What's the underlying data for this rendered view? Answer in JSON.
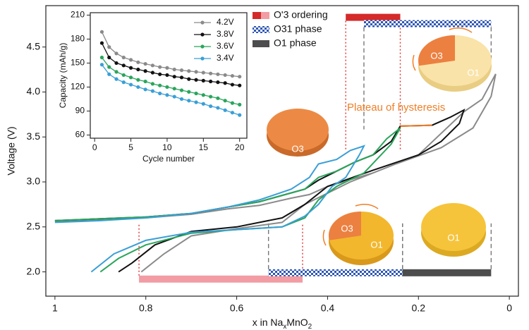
{
  "chart_data": [
    {
      "type": "line",
      "xlabel_parts": [
        "x in Na",
        "x",
        "MnO",
        "2"
      ],
      "ylabel": "Voltage (V)",
      "xlim": [
        1.02,
        -0.02
      ],
      "ylim": [
        1.73,
        4.96
      ],
      "xticks": [
        1,
        0.8,
        0.6,
        0.4,
        0.2,
        0
      ],
      "yticks": [
        {
          "value": 2,
          "label": "2.0"
        },
        {
          "value": 2.5,
          "label": "2.5"
        },
        {
          "value": 3,
          "label": "3.0"
        },
        {
          "value": 3.5,
          "label": "3.5"
        },
        {
          "value": 4,
          "label": "4.0"
        },
        {
          "value": 4.5,
          "label": "4.5"
        }
      ],
      "series": [
        {
          "color": "#8a8a8a",
          "x": [
            1.0,
            0.9,
            0.8,
            0.7,
            0.62,
            0.55,
            0.48,
            0.44,
            0.4,
            0.3,
            0.2,
            0.1,
            0.06,
            0.03,
            0.04,
            0.08,
            0.15,
            0.25,
            0.35,
            0.45,
            0.5,
            0.6,
            0.7,
            0.76,
            0.81
          ],
          "values": [
            2.56,
            2.58,
            2.6,
            2.64,
            2.7,
            2.74,
            2.82,
            2.86,
            2.95,
            3.1,
            3.3,
            3.78,
            3.92,
            4.2,
            3.95,
            3.6,
            3.38,
            3.2,
            3.0,
            2.75,
            2.55,
            2.48,
            2.4,
            2.2,
            2.0
          ]
        },
        {
          "color": "#111111",
          "x": [
            1.0,
            0.9,
            0.8,
            0.7,
            0.62,
            0.55,
            0.5,
            0.45,
            0.42,
            0.38,
            0.34,
            0.3,
            0.26,
            0.24,
            0.17,
            0.13,
            0.1,
            0.11,
            0.15,
            0.2,
            0.3,
            0.4,
            0.45,
            0.5,
            0.6,
            0.7,
            0.78,
            0.83,
            0.86
          ],
          "values": [
            2.57,
            2.59,
            2.61,
            2.65,
            2.72,
            2.78,
            2.85,
            2.92,
            3.02,
            3.12,
            3.22,
            3.3,
            3.45,
            3.62,
            3.63,
            3.72,
            3.8,
            3.65,
            3.45,
            3.3,
            3.13,
            2.95,
            2.75,
            2.6,
            2.5,
            2.45,
            2.3,
            2.1,
            2.0
          ]
        },
        {
          "color": "#2aa55c",
          "x": [
            1.0,
            0.9,
            0.8,
            0.7,
            0.62,
            0.55,
            0.5,
            0.45,
            0.42,
            0.38,
            0.34,
            0.3,
            0.27,
            0.24,
            0.26,
            0.32,
            0.38,
            0.42,
            0.45,
            0.5,
            0.6,
            0.7,
            0.8,
            0.86,
            0.9
          ],
          "values": [
            2.57,
            2.59,
            2.61,
            2.65,
            2.72,
            2.78,
            2.85,
            2.92,
            3.05,
            3.12,
            3.22,
            3.3,
            3.48,
            3.6,
            3.42,
            3.1,
            2.95,
            2.8,
            2.6,
            2.5,
            2.47,
            2.43,
            2.3,
            2.15,
            2.0
          ]
        },
        {
          "color": "#3a9fd6",
          "x": [
            1.0,
            0.9,
            0.8,
            0.7,
            0.62,
            0.55,
            0.48,
            0.44,
            0.42,
            0.38,
            0.35,
            0.32,
            0.33,
            0.36,
            0.39,
            0.42,
            0.45,
            0.5,
            0.6,
            0.7,
            0.8,
            0.87,
            0.92
          ],
          "values": [
            2.55,
            2.57,
            2.6,
            2.65,
            2.72,
            2.8,
            2.92,
            3.05,
            3.2,
            3.25,
            3.35,
            3.4,
            3.3,
            3.05,
            2.95,
            2.75,
            2.62,
            2.5,
            2.47,
            2.44,
            2.35,
            2.2,
            2.0
          ]
        },
        {
          "color": "#f07e26",
          "x": [
            0.24,
            0.2,
            0.17
          ],
          "values": [
            3.62,
            3.625,
            3.63
          ]
        }
      ],
      "phases": [
        {
          "name": "O'3 ordering",
          "color": "#d42a2a",
          "light_color": "#f29ca3",
          "ranges": [
            {
              "x": [
                0.815,
                0.455
              ],
              "y": 1.92,
              "light": true
            },
            {
              "x": [
                0.36,
                0.24
              ],
              "y": 4.83
            }
          ]
        },
        {
          "name": "O31 phase",
          "color": "#2f57b5",
          "pattern": "checker",
          "ranges": [
            {
              "x": [
                0.53,
                0.235
              ],
              "y": 1.99
            },
            {
              "x": [
                0.32,
                0.04
              ],
              "y": 4.76
            }
          ]
        },
        {
          "name": "O1 phase",
          "color": "#4d4d4d",
          "ranges": [
            {
              "x": [
                0.235,
                0.04
              ],
              "y": 1.99
            }
          ]
        }
      ],
      "plateau_label": "Plateau of hysteresis",
      "disk_labels": [
        [
          "O3"
        ],
        [
          "O3",
          "O1"
        ],
        [
          "O3",
          "O1"
        ],
        [
          "O1"
        ]
      ]
    },
    {
      "type": "line",
      "xlabel": "Cycle number",
      "ylabel": "Capacity (mAh/g)",
      "markers": true,
      "xlim": [
        -0.6,
        21
      ],
      "ylim": [
        56,
        213
      ],
      "xticks": [
        0,
        5,
        10,
        15,
        20
      ],
      "yticks": [
        60,
        90,
        120,
        150,
        180,
        210
      ],
      "x": [
        1,
        2,
        3,
        4,
        5,
        6,
        7,
        8,
        9,
        10,
        11,
        12,
        13,
        14,
        15,
        16,
        17,
        18,
        19,
        20
      ],
      "series": [
        {
          "name": "4.2V",
          "color": "#8a8a8a",
          "values": [
            189,
            170,
            162,
            157,
            154,
            151,
            149,
            147,
            145,
            144,
            142,
            141,
            140,
            139,
            138,
            137,
            136,
            135,
            134,
            133
          ]
        },
        {
          "name": "3.8V",
          "color": "#111111",
          "values": [
            175,
            157,
            150,
            147,
            144,
            142,
            140,
            138,
            136,
            135,
            133,
            132,
            130,
            129,
            128,
            127,
            126,
            125,
            123,
            122
          ]
        },
        {
          "name": "3.6V",
          "color": "#2aa55c",
          "values": [
            157,
            145,
            139,
            135,
            132,
            129,
            127,
            124,
            122,
            120,
            118,
            116,
            114,
            112,
            110,
            108,
            106,
            103,
            100,
            98
          ]
        },
        {
          "name": "3.4V",
          "color": "#3a9fd6",
          "values": [
            148,
            136,
            130,
            126,
            123,
            120,
            117,
            115,
            112,
            110,
            108,
            105,
            103,
            101,
            99,
            96,
            94,
            91,
            88,
            85
          ]
        }
      ]
    }
  ]
}
